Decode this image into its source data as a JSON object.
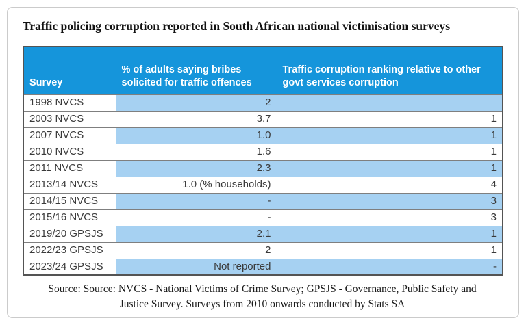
{
  "chart_data": {
    "type": "table",
    "title": "Traffic policing corruption reported in South African national victimisation surveys",
    "columns": [
      "Survey",
      "% of adults saying bribes solicited for traffic offences",
      "Traffic corruption ranking relative to other govt services corruption"
    ],
    "rows": [
      [
        "1998 NVCS",
        "2",
        ""
      ],
      [
        "2003 NVCS",
        "3.7",
        "1"
      ],
      [
        "2007 NVCS",
        "1.0",
        "1"
      ],
      [
        "2010 NVCS",
        "1.6",
        "1"
      ],
      [
        "2011 NVCS",
        "2.3",
        "1"
      ],
      [
        "2013/14 NVCS",
        "1.0 (% households)",
        "4"
      ],
      [
        "2014/15 NVCS",
        "-",
        "3"
      ],
      [
        "2015/16 NVCS",
        "-",
        "3"
      ],
      [
        "2019/20 GPSJS",
        "2.1",
        "1"
      ],
      [
        "2022/23 GPSJS",
        "2",
        "1"
      ],
      [
        "2023/24 GPSJS",
        "Not reported",
        "-"
      ]
    ],
    "row_banding": "alternating, first row shaded, applies to columns 2 and 3 only",
    "source": "Source: Source: NVCS - National Victims of Crime Survey; GPSJS - Governance, Public Safety and Justice Survey. Surveys from 2010 onwards conducted by Stats SA"
  },
  "source_note": {
    "line1": "Source: Source: NVCS - National Victims of Crime Survey; GPSJS - Governance, Public Safety and",
    "line2": "Justice Survey. Surveys from 2010 onwards conducted by Stats SA"
  },
  "colors": {
    "header_bg": "#1595DB",
    "band_bg": "#A6D1F2",
    "header_text": "#FFFFFF",
    "body_text": "#3A3A3A",
    "border_inner": "#7F7F7F",
    "border_outer": "#545454",
    "card_border": "#CBCBCB"
  }
}
